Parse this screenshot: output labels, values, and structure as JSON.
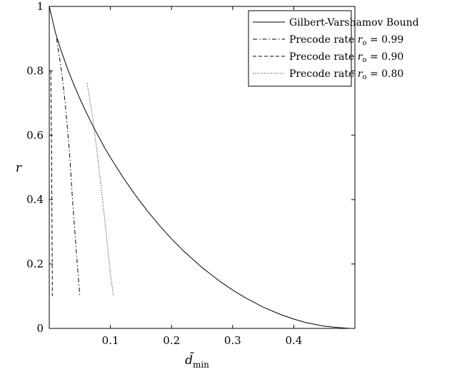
{
  "chart_data": {
    "type": "line",
    "xlabel": "d̄",
    "xlabel_sub": "min",
    "ylabel": "r",
    "xlim": [
      0,
      0.5
    ],
    "ylim": [
      0,
      1
    ],
    "xticks": [
      0.1,
      0.2,
      0.3,
      0.4
    ],
    "xtick_labels": [
      "0.1",
      "0.2",
      "0.3",
      "0.4"
    ],
    "yticks": [
      0,
      0.2,
      0.4,
      0.6,
      0.8,
      1
    ],
    "ytick_labels": [
      "0",
      "0.2",
      "0.4",
      "0.6",
      "0.8",
      "1"
    ],
    "grid": false,
    "legend_position": "top-right",
    "series": [
      {
        "name": "Gilbert-Varshamov Bound",
        "style": "solid",
        "x": [
          0,
          0.01,
          0.02,
          0.03,
          0.04,
          0.05,
          0.06,
          0.07,
          0.08,
          0.09,
          0.1,
          0.12,
          0.14,
          0.16,
          0.18,
          0.2,
          0.22,
          0.25,
          0.28,
          0.3,
          0.32,
          0.35,
          0.38,
          0.4,
          0.42,
          0.45,
          0.47,
          0.49,
          0.5
        ],
        "y": [
          1,
          0.919,
          0.859,
          0.806,
          0.758,
          0.714,
          0.673,
          0.634,
          0.598,
          0.563,
          0.531,
          0.471,
          0.416,
          0.366,
          0.32,
          0.278,
          0.24,
          0.189,
          0.145,
          0.119,
          0.096,
          0.066,
          0.042,
          0.029,
          0.018,
          0.007,
          0.003,
          0.0003,
          0
        ]
      },
      {
        "name": "Precode rate r_o = 0.99",
        "style": "dashdot",
        "x": [
          0.012,
          0.016,
          0.02,
          0.026,
          0.033,
          0.038,
          0.043,
          0.047,
          0.05
        ],
        "y": [
          0.9,
          0.85,
          0.8,
          0.7,
          0.55,
          0.4,
          0.27,
          0.17,
          0.1
        ]
      },
      {
        "name": "Precode rate r_o = 0.90",
        "style": "dashed",
        "x": [
          0.0025,
          0.003,
          0.004,
          0.0045,
          0.005,
          0.005
        ],
        "y": [
          0.8,
          0.7,
          0.5,
          0.3,
          0.15,
          0.1
        ]
      },
      {
        "name": "Precode rate r_o = 0.80",
        "style": "dotted",
        "x": [
          0.062,
          0.07,
          0.078,
          0.086,
          0.094,
          0.1,
          0.105
        ],
        "y": [
          0.76,
          0.67,
          0.55,
          0.42,
          0.28,
          0.17,
          0.1
        ]
      }
    ],
    "legend": [
      {
        "label_prefix": "Gilbert-Varshamov Bound",
        "label_symbol": "",
        "label_sub": "",
        "label_value": ""
      },
      {
        "label_prefix": "Precode rate ",
        "label_symbol": "r",
        "label_sub": "o",
        "label_value": " = 0.99"
      },
      {
        "label_prefix": "Precode rate ",
        "label_symbol": "r",
        "label_sub": "o",
        "label_value": " = 0.90"
      },
      {
        "label_prefix": "Precode rate ",
        "label_symbol": "r",
        "label_sub": "o",
        "label_value": " = 0.80"
      }
    ]
  }
}
